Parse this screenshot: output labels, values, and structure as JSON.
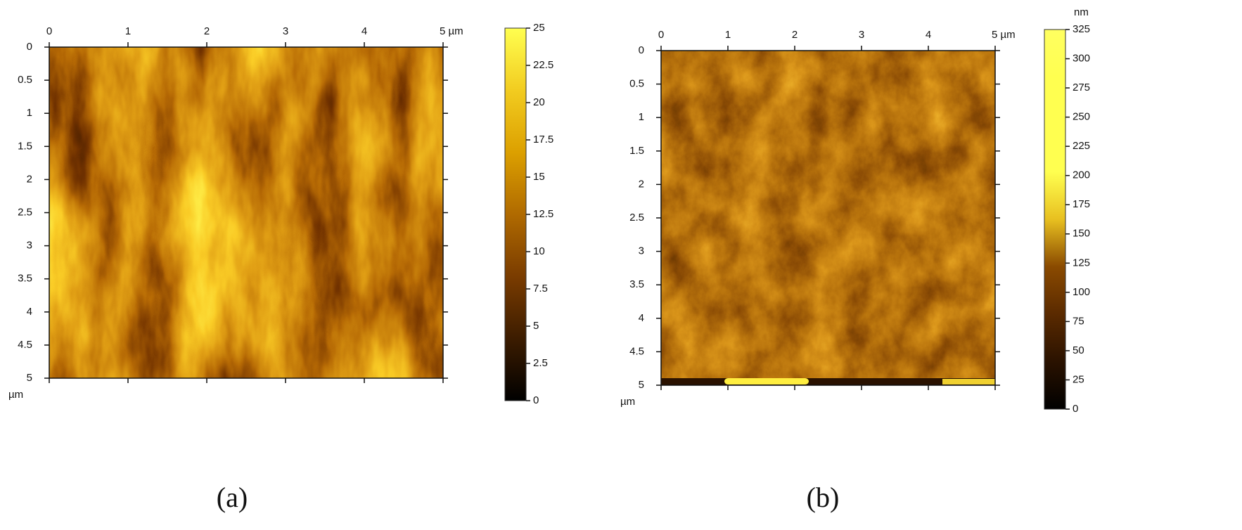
{
  "chart_data": [
    {
      "type": "heatmap",
      "caption": "(a)",
      "xlim": [
        0,
        5
      ],
      "xticks": [
        0,
        1,
        2,
        3,
        4,
        {
          "value": 5,
          "label": "5 µm"
        }
      ],
      "ylim": [
        0,
        5
      ],
      "yticks": [
        0,
        0.5,
        1,
        1.5,
        2,
        2.5,
        3,
        3.5,
        4,
        4.5,
        5
      ],
      "y_unit": "µm",
      "colorbar": {
        "lim": [
          0,
          25
        ],
        "ticks": [
          0,
          2.5,
          5,
          7.5,
          10,
          12.5,
          15,
          17.5,
          20,
          22.5,
          25
        ],
        "colors": [
          "#000000",
          "#3c1c00",
          "#7a3c00",
          "#b06a00",
          "#dca000",
          "#f2cc20",
          "#ffff50"
        ]
      }
    },
    {
      "type": "heatmap",
      "caption": "(b)",
      "xlim": [
        0,
        5
      ],
      "xticks": [
        0,
        1,
        2,
        3,
        4,
        {
          "value": 5,
          "label": "5 µm"
        }
      ],
      "ylim": [
        0,
        5
      ],
      "yticks": [
        0,
        0.5,
        1,
        1.5,
        2,
        2.5,
        3,
        3.5,
        4,
        4.5,
        5
      ],
      "y_unit": "µm",
      "colorbar": {
        "unit": "nm",
        "lim": [
          0,
          325
        ],
        "ticks": [
          0,
          25,
          50,
          75,
          100,
          125,
          150,
          175,
          200,
          225,
          250,
          275,
          300,
          325
        ],
        "colors": [
          "#000000",
          "#2a1200",
          "#5a2a00",
          "#8a4a00",
          "#e8c020",
          "#ffff50",
          "#ffff50",
          "#ffff50",
          "#ffff60"
        ]
      }
    }
  ]
}
